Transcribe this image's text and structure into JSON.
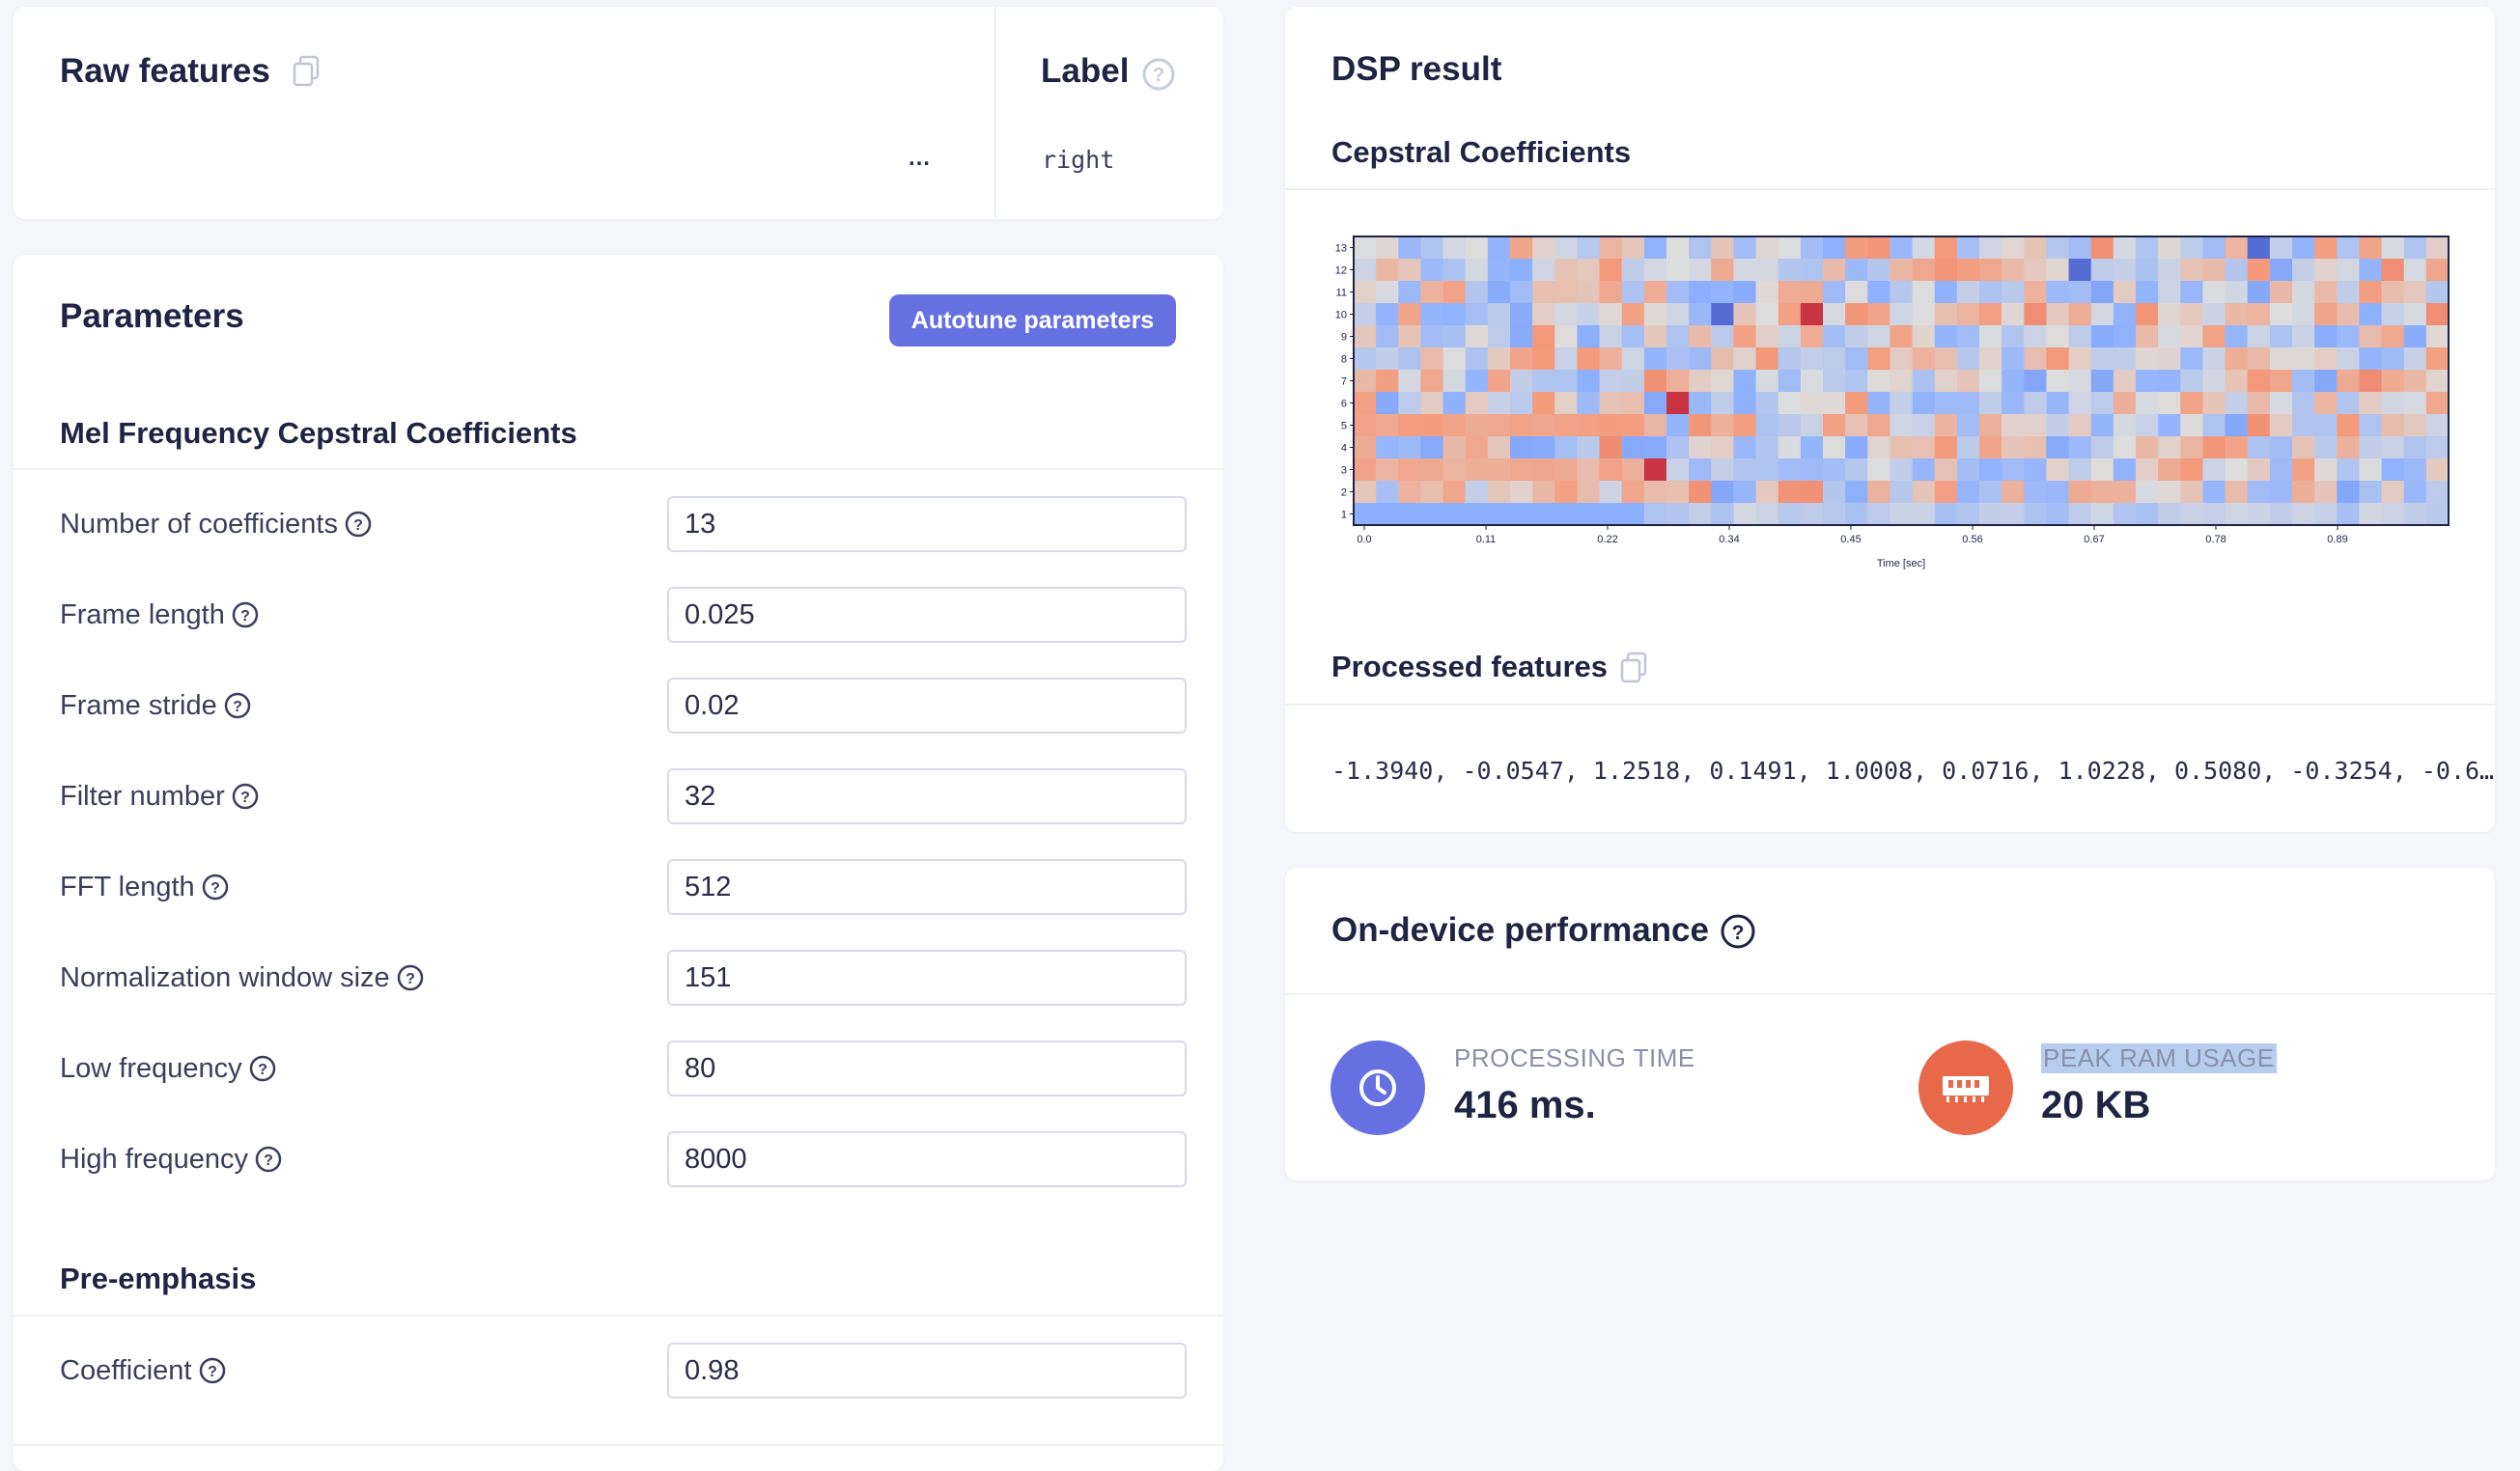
{
  "raw_features": {
    "title": "Raw features",
    "value": "…"
  },
  "label_panel": {
    "title": "Label",
    "value": "right"
  },
  "parameters": {
    "title": "Parameters",
    "autotune_label": "Autotune parameters",
    "mfcc_section": "Mel Frequency Cepstral Coefficients",
    "fields": [
      {
        "label": "Number of coefficients",
        "value": "13"
      },
      {
        "label": "Frame length",
        "value": "0.025"
      },
      {
        "label": "Frame stride",
        "value": "0.02"
      },
      {
        "label": "Filter number",
        "value": "32"
      },
      {
        "label": "FFT length",
        "value": "512"
      },
      {
        "label": "Normalization window size",
        "value": "151"
      },
      {
        "label": "Low frequency",
        "value": "80"
      },
      {
        "label": "High frequency",
        "value": "8000"
      }
    ],
    "preemphasis_section": "Pre-emphasis",
    "coefficient": {
      "label": "Coefficient",
      "value": "0.98"
    }
  },
  "dsp": {
    "title": "DSP result",
    "cepstral_title": "Cepstral Coefficients",
    "processed_title": "Processed features",
    "processed_values": "-1.3940, -0.0547, 1.2518, 0.1491, 1.0008, 0.0716, 1.0228, 0.5080, -0.3254, -0.6…"
  },
  "performance": {
    "title": "On-device performance",
    "processing_label": "PROCESSING TIME",
    "processing_value": "416 ms.",
    "ram_label": "PEAK RAM USAGE",
    "ram_value": "20 KB"
  },
  "colors": {
    "accent": "#6770e1",
    "orange": "#e8684a",
    "cool": "#3b4cc0",
    "warm": "#b40426"
  },
  "chart_data": {
    "type": "heatmap",
    "xlabel": "Time [sec]",
    "ylabel": "",
    "x_tick_labels": [
      "0.0",
      "0.11",
      "0.22",
      "0.34",
      "0.45",
      "0.56",
      "0.67",
      "0.78",
      "0.89"
    ],
    "y_tick_labels": [
      "1",
      "2",
      "3",
      "4",
      "5",
      "6",
      "7",
      "8",
      "9",
      "10",
      "11",
      "12",
      "13"
    ],
    "rows": 13,
    "cols": 49,
    "colormap": "coolwarm"
  }
}
